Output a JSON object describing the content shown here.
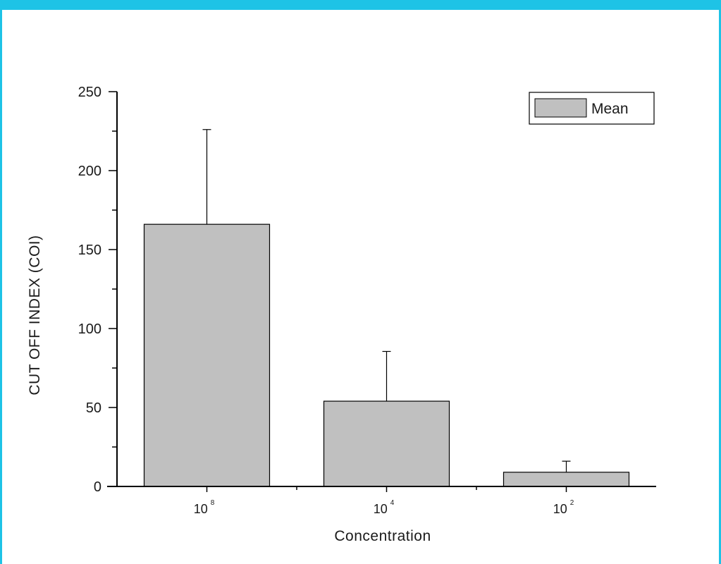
{
  "colors": {
    "frame_accent": "#1ec3e6",
    "bar_fill": "#c0c0c0",
    "bar_stroke": "#000000",
    "axis": "#000000"
  },
  "chart_data": {
    "type": "bar",
    "categories": [
      {
        "base": "10",
        "exponent": "8"
      },
      {
        "base": "10",
        "exponent": "4"
      },
      {
        "base": "10",
        "exponent": "2"
      }
    ],
    "series": [
      {
        "name": "Mean",
        "values": [
          166,
          54,
          9
        ],
        "error_upper": [
          60,
          31.5,
          7
        ]
      }
    ],
    "xlabel": "Concentration",
    "ylabel": "CUT OFF INDEX (COI)",
    "ylim": [
      0,
      250
    ],
    "yticks": [
      0,
      50,
      100,
      150,
      200,
      250
    ],
    "grid": false,
    "legend_position": "top-right",
    "error_bars": "upper"
  }
}
